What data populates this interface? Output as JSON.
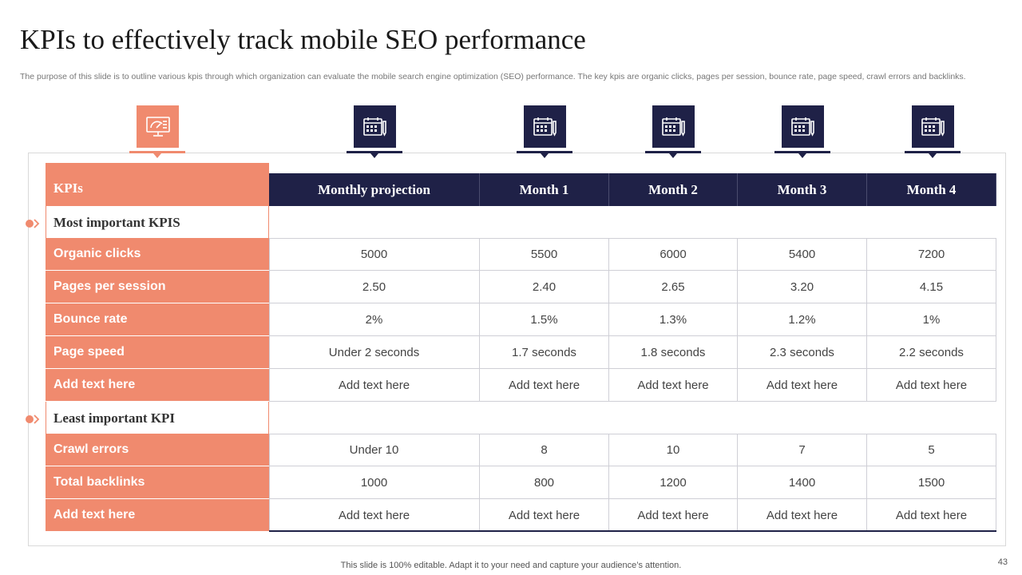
{
  "title": "KPIs to effectively track mobile SEO performance",
  "subtitle": "The purpose of this slide is to outline various kpis through which organization can evaluate the mobile search engine optimization (SEO) performance. The key kpis are organic clicks, pages per session, bounce rate, page speed, crawl errors and backlinks.",
  "icons": [
    {
      "name": "dashboard-monitor-icon",
      "color": "#f08a6e"
    },
    {
      "name": "calendar-icon",
      "color": "#1f2147"
    },
    {
      "name": "calendar-icon",
      "color": "#1f2147"
    },
    {
      "name": "calendar-icon",
      "color": "#1f2147"
    },
    {
      "name": "calendar-icon",
      "color": "#1f2147"
    },
    {
      "name": "calendar-icon",
      "color": "#1f2147"
    }
  ],
  "table": {
    "headers": [
      "KPIs",
      "Monthly projection",
      "Month 1",
      "Month 2",
      "Month 3",
      "Month 4"
    ],
    "sections": [
      {
        "label": "Most important KPIS",
        "rows": [
          {
            "kpi": "Organic clicks",
            "values": [
              "5000",
              "5500",
              "6000",
              "5400",
              "7200"
            ]
          },
          {
            "kpi": "Pages per session",
            "values": [
              "2.50",
              "2.40",
              "2.65",
              "3.20",
              "4.15"
            ]
          },
          {
            "kpi": "Bounce rate",
            "values": [
              "2%",
              "1.5%",
              "1.3%",
              "1.2%",
              "1%"
            ]
          },
          {
            "kpi": "Page speed",
            "values": [
              "Under 2 seconds",
              "1.7 seconds",
              "1.8 seconds",
              "2.3 seconds",
              "2.2 seconds"
            ]
          },
          {
            "kpi": "Add text here",
            "values": [
              "Add text here",
              "Add text here",
              "Add text here",
              "Add text here",
              "Add text here"
            ]
          }
        ]
      },
      {
        "label": "Least important KPI",
        "rows": [
          {
            "kpi": "Crawl errors",
            "values": [
              "Under 10",
              "8",
              "10",
              "7",
              "5"
            ]
          },
          {
            "kpi": "Total backlinks",
            "values": [
              "1000",
              "800",
              "1200",
              "1400",
              "1500"
            ]
          },
          {
            "kpi": "Add text here",
            "values": [
              "Add text here",
              "Add text here",
              "Add text here",
              "Add text here",
              "Add text here"
            ]
          }
        ]
      }
    ]
  },
  "footer": "This slide is 100% editable. Adapt it to your need and capture your audience’s attention.",
  "page_number": "43",
  "colors": {
    "accent": "#f08a6e",
    "navy": "#1f2147"
  }
}
